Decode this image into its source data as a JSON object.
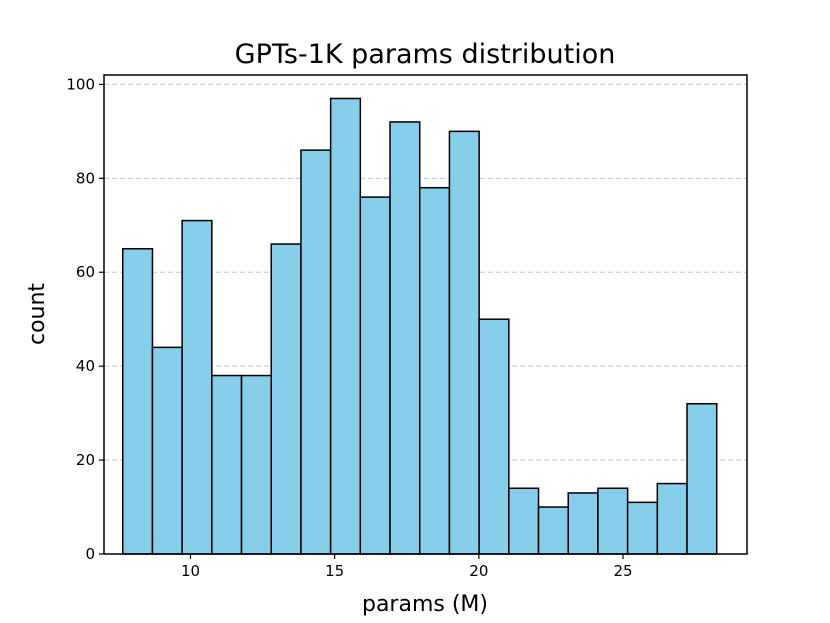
{
  "chart_data": {
    "type": "bar",
    "subtype": "histogram",
    "title": "GPTs-1K params distribution",
    "xlabel": "params (M)",
    "ylabel": "count",
    "xlim": [
      7.0,
      29.3
    ],
    "ylim": [
      0,
      102
    ],
    "xticks": [
      10,
      15,
      20,
      25
    ],
    "yticks": [
      0,
      20,
      40,
      60,
      80,
      100
    ],
    "grid": {
      "axis": "y",
      "style": "dashed"
    },
    "bar_color": "#87CEEB",
    "edge_color": "#000000",
    "bins": [
      {
        "x0": 7.65,
        "x1": 8.68,
        "count": 65
      },
      {
        "x0": 8.68,
        "x1": 9.71,
        "count": 44
      },
      {
        "x0": 9.71,
        "x1": 10.74,
        "count": 71
      },
      {
        "x0": 10.74,
        "x1": 11.77,
        "count": 38
      },
      {
        "x0": 11.77,
        "x1": 12.8,
        "count": 38
      },
      {
        "x0": 12.8,
        "x1": 13.83,
        "count": 66
      },
      {
        "x0": 13.83,
        "x1": 14.86,
        "count": 86
      },
      {
        "x0": 14.86,
        "x1": 15.89,
        "count": 97
      },
      {
        "x0": 15.89,
        "x1": 16.92,
        "count": 76
      },
      {
        "x0": 16.92,
        "x1": 17.95,
        "count": 92
      },
      {
        "x0": 17.95,
        "x1": 18.98,
        "count": 78
      },
      {
        "x0": 18.98,
        "x1": 20.01,
        "count": 90
      },
      {
        "x0": 20.01,
        "x1": 21.04,
        "count": 50
      },
      {
        "x0": 21.04,
        "x1": 22.07,
        "count": 14
      },
      {
        "x0": 22.07,
        "x1": 23.1,
        "count": 10
      },
      {
        "x0": 23.1,
        "x1": 24.13,
        "count": 13
      },
      {
        "x0": 24.13,
        "x1": 25.16,
        "count": 14
      },
      {
        "x0": 25.16,
        "x1": 26.19,
        "count": 11
      },
      {
        "x0": 26.19,
        "x1": 27.22,
        "count": 15
      },
      {
        "x0": 27.22,
        "x1": 28.25,
        "count": 32
      }
    ]
  }
}
